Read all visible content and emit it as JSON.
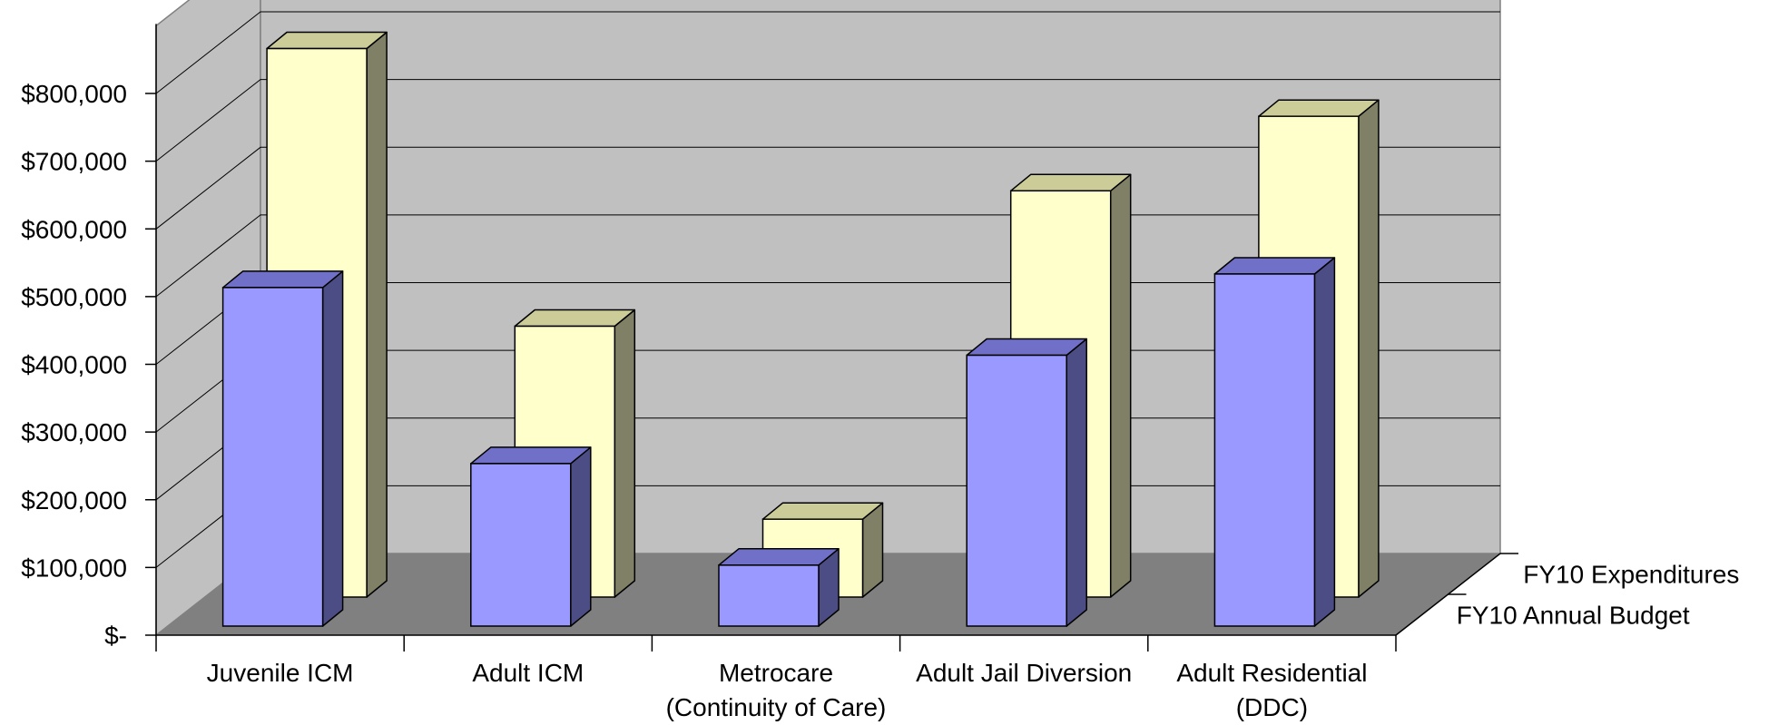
{
  "chart_data": {
    "type": "bar",
    "subtype": "3d-clustered-depth",
    "title": "",
    "xlabel": "",
    "ylabel": "",
    "ylim": [
      0,
      900000
    ],
    "yticks": [
      0,
      100000,
      200000,
      300000,
      400000,
      500000,
      600000,
      700000,
      800000
    ],
    "ytick_labels": [
      "$-",
      "$100,000",
      "$200,000",
      "$300,000",
      "$400,000",
      "$500,000",
      "$600,000",
      "$700,000",
      "$800,000"
    ],
    "grid": true,
    "categories": [
      [
        "Juvenile ICM"
      ],
      [
        "Adult ICM"
      ],
      [
        "Metrocare",
        "(Continuity of Care)"
      ],
      [
        "Adult Jail Diversion"
      ],
      [
        "Adult Residential",
        "(DDC)"
      ]
    ],
    "series": [
      {
        "name": "FY10 Annual Budget",
        "depth_row": "front",
        "values": [
          500000,
          240000,
          90000,
          400000,
          520000
        ],
        "colors": {
          "front": "#9999ff",
          "top": "#7070c8",
          "side": "#4d4d85"
        }
      },
      {
        "name": "FY10 Expenditures",
        "depth_row": "back",
        "values": [
          810000,
          400000,
          115000,
          600000,
          710000
        ],
        "colors": {
          "front": "#ffffcc",
          "top": "#cccc99",
          "side": "#808066"
        }
      }
    ],
    "colors": {
      "back_wall": "#c0c0c0",
      "side_wall": "#c0c0c0",
      "floor": "#808080",
      "gridline": "#000000"
    }
  }
}
